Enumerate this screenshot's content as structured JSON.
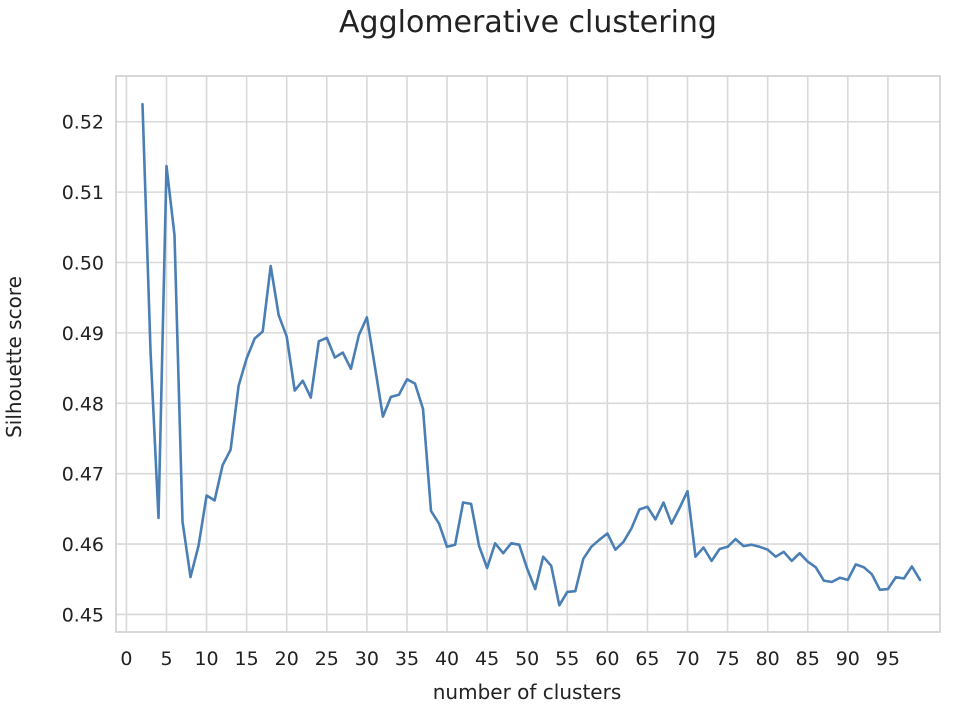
{
  "chart_data": {
    "type": "line",
    "title": "Agglomerative clustering",
    "xlabel": "number of clusters",
    "ylabel": "Silhouette score",
    "xlim": [
      -1.3,
      101.5
    ],
    "ylim": [
      0.4475,
      0.5265
    ],
    "xticks": [
      0,
      5,
      10,
      15,
      20,
      25,
      30,
      35,
      40,
      45,
      50,
      55,
      60,
      65,
      70,
      75,
      80,
      85,
      90,
      95
    ],
    "yticks": [
      0.45,
      0.46,
      0.47,
      0.48,
      0.49,
      0.5,
      0.51,
      0.52
    ],
    "ytick_labels": [
      "0.45",
      "0.46",
      "0.47",
      "0.48",
      "0.49",
      "0.50",
      "0.51",
      "0.52"
    ],
    "grid": true,
    "line_color": "#4a7fb5",
    "series": [
      {
        "x": [
          2,
          3,
          4,
          5,
          6,
          7,
          8,
          9,
          10,
          11,
          12,
          13,
          14,
          15,
          16,
          17,
          18,
          19,
          20,
          21,
          22,
          23,
          24,
          25,
          26,
          27,
          28,
          29,
          30,
          31,
          32,
          33,
          34,
          35,
          36,
          37,
          38,
          39,
          40,
          41,
          42,
          43,
          44,
          45,
          46,
          47,
          48,
          49,
          50,
          51,
          52,
          53,
          54,
          55,
          56,
          57,
          58,
          59,
          60,
          61,
          62,
          63,
          64,
          65,
          66,
          67,
          68,
          69,
          70,
          71,
          72,
          73,
          74,
          75,
          76,
          77,
          78,
          79,
          80,
          81,
          82,
          83,
          84,
          85,
          86,
          87,
          88,
          89,
          90,
          91,
          92,
          93,
          94,
          95,
          96,
          97,
          98,
          99
        ],
        "values": [
          0.5225,
          0.4875,
          0.4637,
          0.5137,
          0.5039,
          0.4632,
          0.4553,
          0.4598,
          0.4669,
          0.4662,
          0.4712,
          0.4734,
          0.4825,
          0.4864,
          0.4892,
          0.4902,
          0.4995,
          0.4925,
          0.4895,
          0.4818,
          0.4832,
          0.4808,
          0.4888,
          0.4893,
          0.4865,
          0.4872,
          0.4849,
          0.4897,
          0.4922,
          0.4852,
          0.4781,
          0.4809,
          0.4812,
          0.4834,
          0.4828,
          0.4792,
          0.4647,
          0.4629,
          0.4596,
          0.4599,
          0.4659,
          0.4657,
          0.4597,
          0.4566,
          0.4601,
          0.4587,
          0.4601,
          0.4599,
          0.4565,
          0.4536,
          0.4582,
          0.4569,
          0.4513,
          0.4532,
          0.4533,
          0.4579,
          0.4596,
          0.4606,
          0.4615,
          0.4592,
          0.4603,
          0.4622,
          0.4649,
          0.4653,
          0.4635,
          0.4659,
          0.4629,
          0.4651,
          0.4675,
          0.4582,
          0.4595,
          0.4576,
          0.4593,
          0.4596,
          0.4607,
          0.4597,
          0.4599,
          0.4596,
          0.4592,
          0.4582,
          0.4589,
          0.4576,
          0.4587,
          0.4575,
          0.4567,
          0.4548,
          0.4546,
          0.4552,
          0.4549,
          0.4571,
          0.4567,
          0.4557,
          0.4535,
          0.4536,
          0.4553,
          0.4551,
          0.4568,
          0.4549
        ]
      }
    ]
  }
}
